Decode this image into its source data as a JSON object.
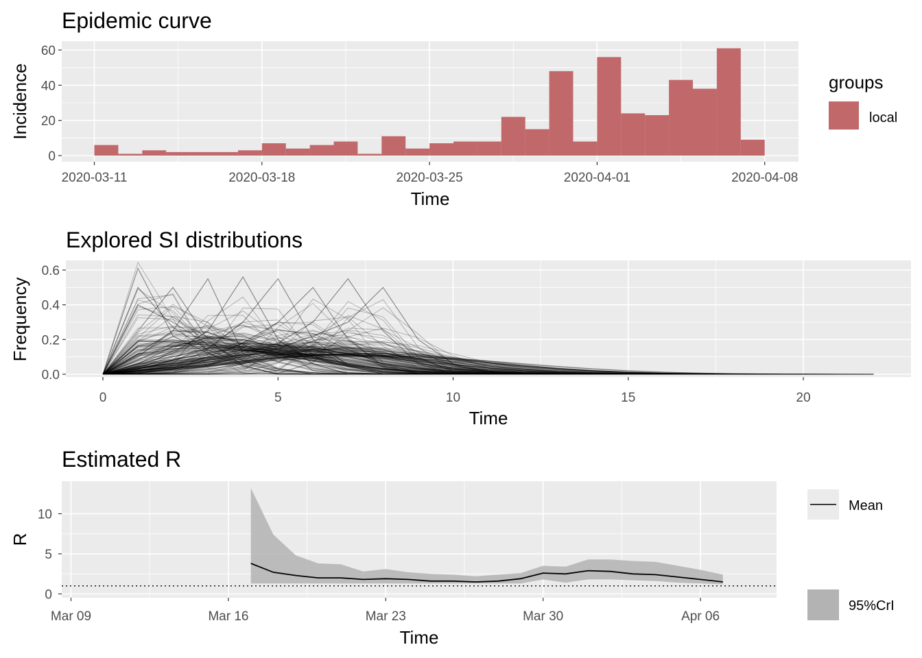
{
  "panels": {
    "epi": {
      "title": "Epidemic curve",
      "xlabel": "Time",
      "ylabel": "Incidence"
    },
    "si": {
      "title": "Explored SI distributions",
      "xlabel": "Time",
      "ylabel": "Frequency"
    },
    "r": {
      "title": "Estimated R",
      "xlabel": "Time",
      "ylabel": "R"
    }
  },
  "legends": {
    "groups_title": "groups",
    "local_label": "local",
    "mean_label": "Mean",
    "cri_label": "95%CrI"
  },
  "colors": {
    "bar": "#c0686a",
    "panel_bg": "#ebebeb",
    "grid": "#ffffff",
    "ribbon": "#b3b3b3",
    "line": "#000000"
  },
  "chart_data": [
    {
      "type": "bar",
      "title": "Epidemic curve",
      "xlabel": "Time",
      "ylabel": "Incidence",
      "legend": {
        "title": "groups",
        "entries": [
          "local"
        ],
        "position": "right"
      },
      "x_ticks": [
        "2020-03-11",
        "2020-03-18",
        "2020-03-25",
        "2020-04-01",
        "2020-04-08"
      ],
      "ylim": [
        0,
        62
      ],
      "y_ticks": [
        0,
        20,
        40,
        60
      ],
      "categories": [
        "2020-03-11",
        "2020-03-12",
        "2020-03-13",
        "2020-03-14",
        "2020-03-15",
        "2020-03-16",
        "2020-03-17",
        "2020-03-18",
        "2020-03-19",
        "2020-03-20",
        "2020-03-21",
        "2020-03-22",
        "2020-03-23",
        "2020-03-24",
        "2020-03-25",
        "2020-03-26",
        "2020-03-27",
        "2020-03-28",
        "2020-03-29",
        "2020-03-30",
        "2020-03-31",
        "2020-04-01",
        "2020-04-02",
        "2020-04-03",
        "2020-04-04",
        "2020-04-05",
        "2020-04-06",
        "2020-04-07"
      ],
      "series": [
        {
          "name": "local",
          "values": [
            6,
            1,
            3,
            2,
            2,
            2,
            3,
            7,
            4,
            6,
            8,
            1,
            11,
            4,
            7,
            8,
            8,
            22,
            15,
            48,
            8,
            56,
            24,
            23,
            43,
            38,
            61,
            9
          ]
        }
      ]
    },
    {
      "type": "line",
      "title": "Explored SI distributions",
      "xlabel": "Time",
      "ylabel": "Frequency",
      "xlim": [
        0,
        22
      ],
      "ylim": [
        0,
        0.62
      ],
      "x_ticks": [
        0,
        5,
        10,
        15,
        20
      ],
      "y_ticks": [
        0.0,
        0.2,
        0.4,
        0.6
      ],
      "y_tick_labels": [
        "0.0",
        "0.2",
        "0.4",
        "0.6"
      ],
      "note_values": "one line per sampled serial-interval distribution; values per integer time step 0-22",
      "series": [
        {
          "values": [
            0,
            0.61,
            0.22,
            0.12,
            0.05,
            0.0,
            0,
            0,
            0,
            0,
            0,
            0,
            0,
            0,
            0,
            0,
            0,
            0,
            0,
            0,
            0,
            0,
            0
          ]
        },
        {
          "values": [
            0,
            0.5,
            0.27,
            0.14,
            0.06,
            0.02,
            0.01,
            0,
            0,
            0,
            0,
            0,
            0,
            0,
            0,
            0,
            0,
            0,
            0,
            0,
            0,
            0,
            0
          ]
        },
        {
          "values": [
            0,
            0.4,
            0.3,
            0.17,
            0.08,
            0.03,
            0.01,
            0,
            0,
            0,
            0,
            0,
            0,
            0,
            0,
            0,
            0,
            0,
            0,
            0,
            0,
            0,
            0
          ]
        },
        {
          "values": [
            0,
            0.25,
            0.5,
            0.2,
            0.05,
            0.0,
            0,
            0,
            0,
            0,
            0,
            0,
            0,
            0,
            0,
            0,
            0,
            0,
            0,
            0,
            0,
            0,
            0
          ]
        },
        {
          "values": [
            0,
            0.1,
            0.25,
            0.55,
            0.12,
            0.03,
            0,
            0,
            0,
            0,
            0,
            0,
            0,
            0,
            0,
            0,
            0,
            0,
            0,
            0,
            0,
            0,
            0
          ]
        },
        {
          "values": [
            0,
            0.05,
            0.12,
            0.25,
            0.56,
            0.2,
            0.06,
            0,
            0,
            0,
            0,
            0,
            0,
            0,
            0,
            0,
            0,
            0,
            0,
            0,
            0,
            0,
            0
          ]
        },
        {
          "values": [
            0,
            0.03,
            0.08,
            0.15,
            0.3,
            0.55,
            0.2,
            0.05,
            0,
            0,
            0,
            0,
            0,
            0,
            0,
            0,
            0,
            0,
            0,
            0,
            0,
            0,
            0
          ]
        },
        {
          "values": [
            0,
            0.02,
            0.05,
            0.1,
            0.18,
            0.3,
            0.5,
            0.2,
            0.05,
            0,
            0,
            0,
            0,
            0,
            0,
            0,
            0,
            0,
            0,
            0,
            0,
            0,
            0
          ]
        },
        {
          "values": [
            0,
            0.02,
            0.04,
            0.08,
            0.12,
            0.18,
            0.3,
            0.55,
            0.25,
            0.06,
            0,
            0,
            0,
            0,
            0,
            0,
            0,
            0,
            0,
            0,
            0,
            0,
            0
          ]
        },
        {
          "values": [
            0,
            0.01,
            0.03,
            0.06,
            0.1,
            0.15,
            0.22,
            0.3,
            0.5,
            0.2,
            0.06,
            0.02,
            0,
            0,
            0,
            0,
            0,
            0,
            0,
            0,
            0,
            0,
            0
          ]
        },
        {
          "values": [
            0,
            0.02,
            0.05,
            0.08,
            0.11,
            0.13,
            0.14,
            0.14,
            0.12,
            0.09,
            0.06,
            0.03,
            0.02,
            0.01,
            0.005,
            0.003,
            0.002,
            0.001,
            0.001,
            0.0,
            0.0,
            0.0,
            0.0
          ]
        },
        {
          "values": [
            0,
            0.03,
            0.08,
            0.12,
            0.15,
            0.16,
            0.15,
            0.12,
            0.08,
            0.05,
            0.03,
            0.015,
            0.008,
            0.004,
            0.002,
            0.001,
            0,
            0,
            0,
            0,
            0,
            0,
            0
          ]
        },
        {
          "values": [
            0,
            0.06,
            0.16,
            0.21,
            0.2,
            0.15,
            0.1,
            0.06,
            0.03,
            0.015,
            0.007,
            0.003,
            0.001,
            0,
            0,
            0,
            0,
            0,
            0,
            0,
            0,
            0,
            0
          ]
        },
        {
          "values": [
            0,
            0.12,
            0.25,
            0.24,
            0.17,
            0.1,
            0.06,
            0.03,
            0.015,
            0.007,
            0.003,
            0.001,
            0,
            0,
            0,
            0,
            0,
            0,
            0,
            0,
            0,
            0,
            0
          ]
        },
        {
          "values": [
            0,
            0.01,
            0.03,
            0.06,
            0.09,
            0.12,
            0.14,
            0.15,
            0.14,
            0.11,
            0.07,
            0.04,
            0.02,
            0.01,
            0.006,
            0.003,
            0.002,
            0.001,
            0,
            0,
            0,
            0,
            0
          ]
        },
        {
          "values": [
            0,
            0.03,
            0.07,
            0.11,
            0.14,
            0.15,
            0.14,
            0.12,
            0.09,
            0.06,
            0.04,
            0.025,
            0.015,
            0.009,
            0.005,
            0.003,
            0.002,
            0.001,
            0.001,
            0.0,
            0.0,
            0.0,
            0.0
          ]
        },
        {
          "values": [
            0,
            0.08,
            0.18,
            0.22,
            0.19,
            0.14,
            0.09,
            0.05,
            0.03,
            0.015,
            0.008,
            0.004,
            0.002,
            0.001,
            0,
            0,
            0,
            0,
            0,
            0,
            0,
            0,
            0
          ]
        },
        {
          "values": [
            0,
            0.04,
            0.1,
            0.15,
            0.18,
            0.17,
            0.14,
            0.1,
            0.06,
            0.035,
            0.02,
            0.01,
            0.005,
            0.002,
            0.001,
            0,
            0,
            0,
            0,
            0,
            0,
            0,
            0
          ]
        }
      ]
    },
    {
      "type": "area",
      "title": "Estimated R",
      "xlabel": "Time",
      "ylabel": "R",
      "x_ticks": [
        "Mar 09",
        "Mar 16",
        "Mar 23",
        "Mar 30",
        "Apr 06"
      ],
      "x_tick_dates": [
        "2020-03-09",
        "2020-03-16",
        "2020-03-23",
        "2020-03-30",
        "2020-04-06"
      ],
      "xlim": [
        "2020-03-09",
        "2020-04-09"
      ],
      "ylim": [
        -0.6,
        13.8
      ],
      "y_ticks": [
        0,
        5,
        10
      ],
      "reference_line": 1,
      "legend": {
        "entries": [
          "Mean",
          "95%CrI"
        ],
        "position": "right"
      },
      "x": [
        "2020-03-17",
        "2020-03-18",
        "2020-03-19",
        "2020-03-20",
        "2020-03-21",
        "2020-03-22",
        "2020-03-23",
        "2020-03-24",
        "2020-03-25",
        "2020-03-26",
        "2020-03-27",
        "2020-03-28",
        "2020-03-29",
        "2020-03-30",
        "2020-03-31",
        "2020-04-01",
        "2020-04-02",
        "2020-04-03",
        "2020-04-04",
        "2020-04-05",
        "2020-04-06",
        "2020-04-07"
      ],
      "series": [
        {
          "name": "Mean",
          "values": [
            3.8,
            2.7,
            2.3,
            2.0,
            2.0,
            1.8,
            1.9,
            1.8,
            1.6,
            1.6,
            1.5,
            1.6,
            1.9,
            2.6,
            2.5,
            2.9,
            2.8,
            2.5,
            2.4,
            2.1,
            1.8,
            1.5
          ]
        },
        {
          "name": "95%CrI",
          "lower": [
            1.3,
            1.3,
            1.3,
            1.3,
            1.3,
            1.3,
            1.3,
            1.3,
            1.3,
            1.3,
            1.3,
            1.3,
            1.3,
            1.8,
            1.4,
            1.8,
            1.8,
            1.7,
            1.6,
            1.4,
            1.3,
            1.2
          ],
          "upper": [
            13.2,
            7.4,
            4.8,
            3.8,
            3.7,
            2.8,
            3.1,
            2.7,
            2.5,
            2.4,
            2.2,
            2.4,
            2.6,
            3.5,
            3.4,
            4.3,
            4.3,
            4.1,
            4.0,
            3.5,
            3.0,
            2.4
          ]
        }
      ]
    }
  ]
}
